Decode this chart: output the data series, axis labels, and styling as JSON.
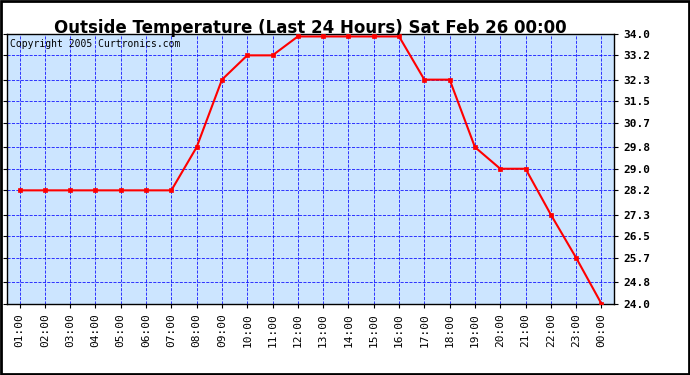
{
  "title": "Outside Temperature (Last 24 Hours) Sat Feb 26 00:00",
  "copyright": "Copyright 2005 Curtronics.com",
  "x_labels": [
    "01:00",
    "02:00",
    "03:00",
    "04:00",
    "05:00",
    "06:00",
    "07:00",
    "08:00",
    "09:00",
    "10:00",
    "11:00",
    "12:00",
    "13:00",
    "14:00",
    "15:00",
    "16:00",
    "17:00",
    "18:00",
    "19:00",
    "20:00",
    "21:00",
    "22:00",
    "23:00",
    "00:00"
  ],
  "y_values": [
    28.2,
    28.2,
    28.2,
    28.2,
    28.2,
    28.2,
    28.2,
    29.8,
    32.3,
    33.2,
    33.2,
    33.9,
    33.9,
    33.9,
    33.9,
    33.9,
    32.3,
    32.3,
    29.8,
    29.0,
    29.0,
    27.3,
    25.7,
    24.0
  ],
  "ylim_min": 24.0,
  "ylim_max": 34.0,
  "yticks": [
    24.0,
    24.8,
    25.7,
    26.5,
    27.3,
    28.2,
    29.0,
    29.8,
    30.7,
    31.5,
    32.3,
    33.2,
    34.0
  ],
  "line_color": "red",
  "marker": "s",
  "marker_size": 3,
  "bg_color": "#cce5ff",
  "fig_bg": "#ffffff",
  "outer_border": "#000000",
  "grid_color": "blue",
  "title_fontsize": 12,
  "copyright_fontsize": 7,
  "tick_fontsize": 8,
  "title_color": "black"
}
